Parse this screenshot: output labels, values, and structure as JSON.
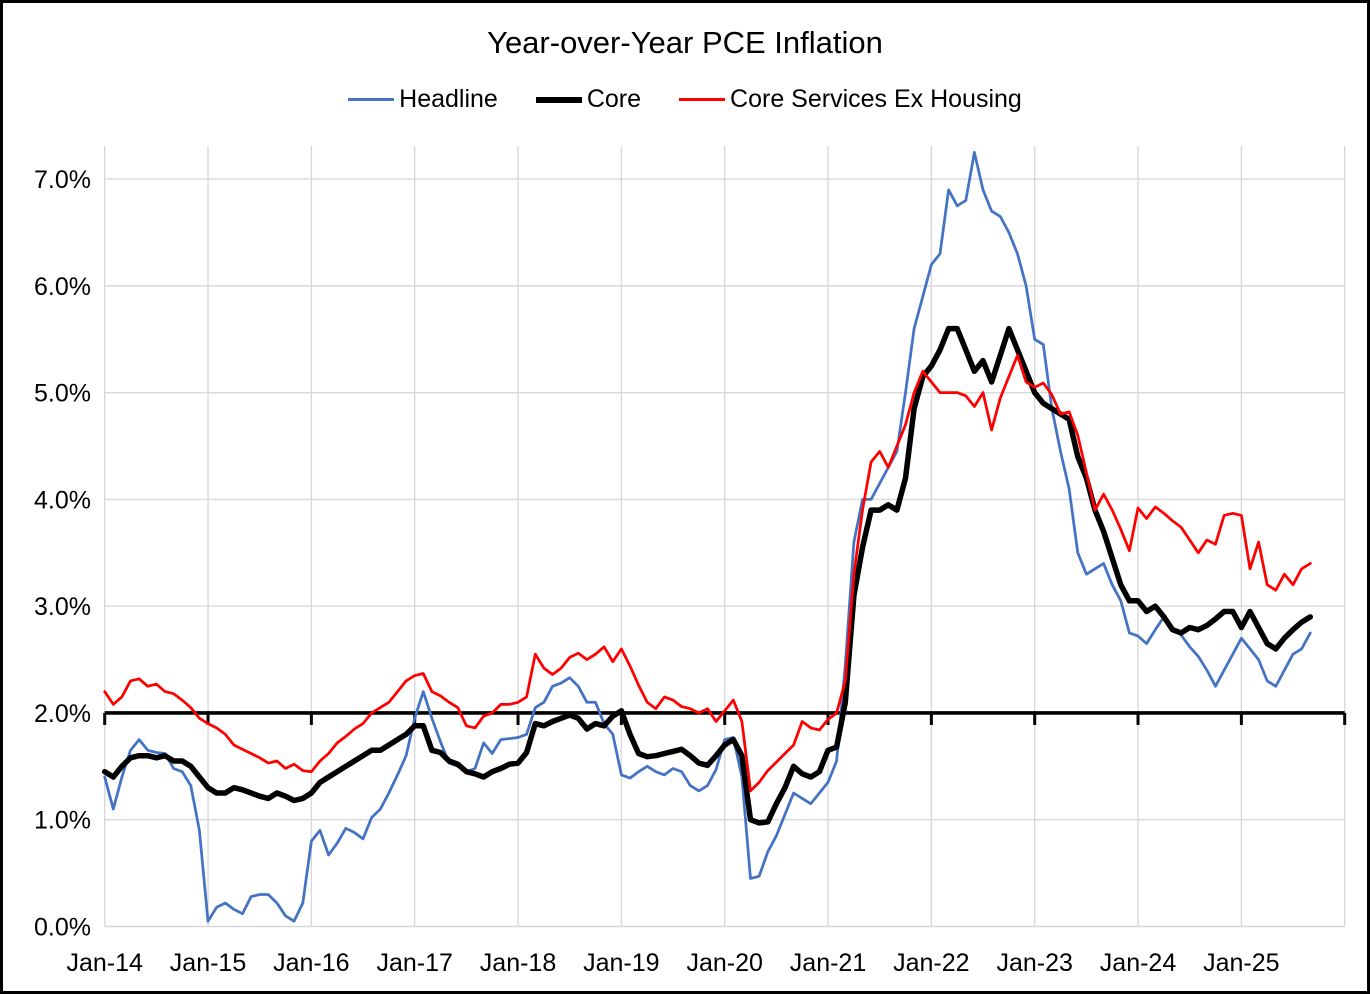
{
  "title": "Year-over-Year PCE Inflation",
  "legend": {
    "items": [
      {
        "label": "Headline"
      },
      {
        "label": "Core"
      },
      {
        "label": "Core Services Ex Housing"
      }
    ]
  },
  "chart_data": {
    "type": "line",
    "title": "Year-over-Year PCE Inflation",
    "xlabel": "",
    "ylabel": "",
    "grid": true,
    "legend_position": "top",
    "x_unit": "month",
    "x_start": "Jan-14",
    "x_end": "Sep-25",
    "x_tick_labels": [
      "Jan-14",
      "Jan-15",
      "Jan-16",
      "Jan-17",
      "Jan-18",
      "Jan-19",
      "Jan-20",
      "Jan-21",
      "Jan-22",
      "Jan-23",
      "Jan-24",
      "Jan-25"
    ],
    "y_tick_labels": [
      "0.0%",
      "1.0%",
      "2.0%",
      "3.0%",
      "4.0%",
      "5.0%",
      "6.0%",
      "7.0%"
    ],
    "ylim": [
      0,
      7.31
    ],
    "y_major_unit": 1.0,
    "reference_line_value": 2.0,
    "gridline_color": "#D9D9D9",
    "axis_color": "#000000",
    "series": [
      {
        "name": "Headline",
        "color": "#4472C4",
        "stroke_width": 2.75,
        "values": [
          1.4,
          1.1,
          1.4,
          1.65,
          1.75,
          1.65,
          1.63,
          1.62,
          1.48,
          1.45,
          1.32,
          0.9,
          0.05,
          0.18,
          0.22,
          0.16,
          0.12,
          0.28,
          0.3,
          0.3,
          0.22,
          0.1,
          0.05,
          0.22,
          0.8,
          0.9,
          0.67,
          0.78,
          0.92,
          0.88,
          0.82,
          1.02,
          1.1,
          1.25,
          1.42,
          1.6,
          1.95,
          2.2,
          1.95,
          1.73,
          1.53,
          1.5,
          1.45,
          1.48,
          1.72,
          1.62,
          1.75,
          1.76,
          1.77,
          1.8,
          2.05,
          2.1,
          2.25,
          2.28,
          2.33,
          2.25,
          2.1,
          2.1,
          1.9,
          1.8,
          1.42,
          1.39,
          1.45,
          1.5,
          1.45,
          1.42,
          1.48,
          1.45,
          1.32,
          1.27,
          1.32,
          1.47,
          1.75,
          1.77,
          1.4,
          0.45,
          0.47,
          0.7,
          0.85,
          1.05,
          1.25,
          1.2,
          1.15,
          1.25,
          1.35,
          1.55,
          2.45,
          3.6,
          4.0,
          4.0,
          4.15,
          4.3,
          4.45,
          5.0,
          5.6,
          5.9,
          6.2,
          6.3,
          6.9,
          6.75,
          6.8,
          7.25,
          6.9,
          6.7,
          6.65,
          6.5,
          6.3,
          6.0,
          5.5,
          5.45,
          4.85,
          4.45,
          4.1,
          3.5,
          3.3,
          3.35,
          3.4,
          3.2,
          3.05,
          2.75,
          2.72,
          2.65,
          2.78,
          2.9,
          2.8,
          2.73,
          2.62,
          2.53,
          2.4,
          2.25,
          2.4,
          2.55,
          2.7,
          2.6,
          2.5,
          2.3,
          2.25,
          2.4,
          2.55,
          2.6,
          2.75
        ]
      },
      {
        "name": "Core",
        "color": "#000000",
        "stroke_width": 5.5,
        "values": [
          1.45,
          1.4,
          1.5,
          1.58,
          1.6,
          1.6,
          1.58,
          1.6,
          1.55,
          1.55,
          1.5,
          1.4,
          1.3,
          1.25,
          1.25,
          1.3,
          1.28,
          1.25,
          1.22,
          1.2,
          1.25,
          1.22,
          1.18,
          1.2,
          1.25,
          1.35,
          1.4,
          1.45,
          1.5,
          1.55,
          1.6,
          1.65,
          1.65,
          1.7,
          1.75,
          1.8,
          1.88,
          1.88,
          1.65,
          1.63,
          1.55,
          1.52,
          1.45,
          1.43,
          1.4,
          1.45,
          1.48,
          1.52,
          1.53,
          1.63,
          1.9,
          1.88,
          1.92,
          1.95,
          1.98,
          1.95,
          1.85,
          1.9,
          1.88,
          1.97,
          2.02,
          1.8,
          1.62,
          1.59,
          1.6,
          1.62,
          1.64,
          1.66,
          1.6,
          1.53,
          1.51,
          1.6,
          1.7,
          1.75,
          1.6,
          1.0,
          0.97,
          0.98,
          1.15,
          1.3,
          1.5,
          1.43,
          1.4,
          1.45,
          1.65,
          1.68,
          2.1,
          3.1,
          3.55,
          3.9,
          3.9,
          3.95,
          3.9,
          4.2,
          4.85,
          5.15,
          5.25,
          5.4,
          5.6,
          5.6,
          5.4,
          5.2,
          5.3,
          5.1,
          5.35,
          5.6,
          5.4,
          5.2,
          5.0,
          4.9,
          4.85,
          4.8,
          4.75,
          4.4,
          4.2,
          3.9,
          3.7,
          3.45,
          3.2,
          3.05,
          3.05,
          2.95,
          3.0,
          2.9,
          2.78,
          2.75,
          2.8,
          2.78,
          2.82,
          2.88,
          2.95,
          2.95,
          2.8,
          2.95,
          2.8,
          2.65,
          2.6,
          2.7,
          2.78,
          2.85,
          2.9
        ]
      },
      {
        "name": "Core Services Ex Housing",
        "color": "#FF0000",
        "stroke_width": 2.75,
        "values": [
          2.2,
          2.08,
          2.15,
          2.3,
          2.32,
          2.25,
          2.27,
          2.2,
          2.18,
          2.12,
          2.05,
          1.95,
          1.9,
          1.86,
          1.8,
          1.7,
          1.66,
          1.62,
          1.58,
          1.53,
          1.55,
          1.48,
          1.52,
          1.46,
          1.45,
          1.55,
          1.62,
          1.72,
          1.78,
          1.85,
          1.9,
          2.0,
          2.05,
          2.1,
          2.2,
          2.3,
          2.35,
          2.37,
          2.2,
          2.16,
          2.1,
          2.05,
          1.88,
          1.86,
          1.97,
          2.0,
          2.08,
          2.08,
          2.1,
          2.15,
          2.55,
          2.42,
          2.36,
          2.42,
          2.52,
          2.56,
          2.5,
          2.55,
          2.62,
          2.48,
          2.6,
          2.44,
          2.26,
          2.1,
          2.04,
          2.15,
          2.12,
          2.06,
          2.04,
          2.0,
          2.04,
          1.92,
          2.02,
          2.12,
          1.92,
          1.27,
          1.35,
          1.46,
          1.54,
          1.62,
          1.7,
          1.92,
          1.86,
          1.84,
          1.94,
          2.0,
          2.3,
          3.3,
          3.9,
          4.35,
          4.45,
          4.3,
          4.5,
          4.7,
          5.0,
          5.2,
          5.1,
          5.0,
          5.0,
          5.0,
          4.97,
          4.87,
          5.0,
          4.65,
          4.95,
          5.15,
          5.35,
          5.1,
          5.05,
          5.09,
          4.98,
          4.8,
          4.82,
          4.6,
          4.25,
          3.9,
          4.05,
          3.9,
          3.72,
          3.52,
          3.92,
          3.82,
          3.93,
          3.87,
          3.8,
          3.74,
          3.62,
          3.5,
          3.62,
          3.58,
          3.85,
          3.87,
          3.85,
          3.35,
          3.6,
          3.2,
          3.15,
          3.3,
          3.2,
          3.35,
          3.4
        ]
      }
    ]
  }
}
